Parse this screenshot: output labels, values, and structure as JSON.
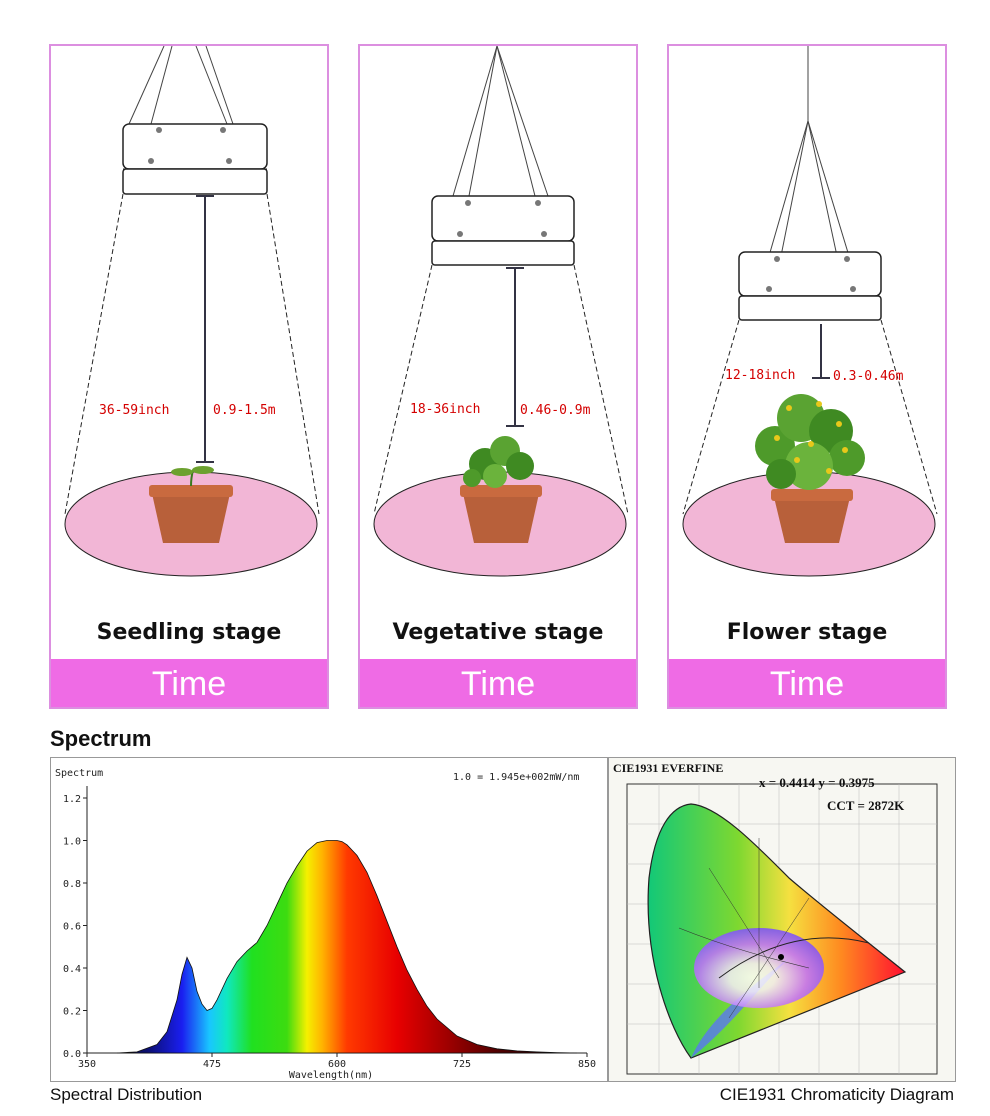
{
  "stages": [
    {
      "name": "Seedling stage",
      "inch": "36-59inch",
      "meters": "0.9-1.5m",
      "time": "Time"
    },
    {
      "name": "Vegetative stage",
      "inch": "18-36inch",
      "meters": "0.46-0.9m",
      "time": "Time"
    },
    {
      "name": "Flower stage",
      "inch": "12-18inch",
      "meters": "0.3-0.46m",
      "time": "Time"
    }
  ],
  "spectrum": {
    "section_title": "Spectrum",
    "chart_title": "Spectrum",
    "scale_note": "1.0 = 1.945e+002mW/nm",
    "xlabel": "Wavelength(nm)",
    "caption": "Spectral Distribution"
  },
  "chart_data": {
    "type": "area",
    "title": "Spectrum",
    "xlabel": "Wavelength(nm)",
    "ylabel": "",
    "xlim": [
      350,
      850
    ],
    "ylim": [
      0,
      1.2
    ],
    "x_ticks": [
      "350",
      "475",
      "600",
      "725",
      "850"
    ],
    "y_ticks": [
      "0.0",
      "0.2",
      "0.4",
      "0.6",
      "0.8",
      "1.0",
      "1.2"
    ],
    "x": [
      380,
      400,
      420,
      430,
      440,
      445,
      450,
      455,
      460,
      465,
      470,
      475,
      480,
      490,
      500,
      510,
      520,
      530,
      540,
      550,
      560,
      570,
      580,
      590,
      600,
      605,
      610,
      620,
      630,
      640,
      650,
      660,
      670,
      680,
      690,
      700,
      720,
      740,
      760,
      780,
      800,
      820,
      840
    ],
    "y": [
      0.0,
      0.005,
      0.04,
      0.1,
      0.25,
      0.37,
      0.45,
      0.4,
      0.29,
      0.23,
      0.2,
      0.21,
      0.25,
      0.35,
      0.43,
      0.48,
      0.52,
      0.6,
      0.7,
      0.8,
      0.88,
      0.95,
      0.99,
      1.0,
      1.0,
      0.995,
      0.98,
      0.93,
      0.85,
      0.74,
      0.62,
      0.5,
      0.39,
      0.3,
      0.22,
      0.16,
      0.08,
      0.04,
      0.02,
      0.01,
      0.005,
      0.002,
      0.0
    ],
    "grid": false
  },
  "cie": {
    "header": "CIE1931  EVERFINE",
    "xy": "x = 0.4414  y = 0.3975",
    "cct": "CCT = 2872K",
    "caption": "CIE1931 Chromaticity Diagram"
  },
  "colors": {
    "accent_pink": "#ef6be5",
    "border_pink": "#dc8fe0",
    "floor_pink": "#f2b6d6",
    "dim_red": "#d40000"
  },
  "icons": [
    "grow-light-panel",
    "potted-seedling",
    "potted-plant",
    "potted-flowering-plant"
  ]
}
